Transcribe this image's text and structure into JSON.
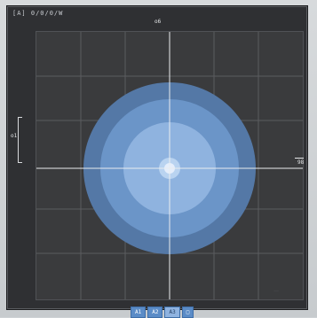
{
  "window": {
    "title": "[A] 0/0/0/W"
  },
  "axes": {
    "top_label": "o6",
    "right_label": "98",
    "left_scale_label": "o1"
  },
  "viewer": {
    "colors": {
      "background": "#3a3b3d",
      "grid": "#5b5d60",
      "crosshair": "#e9ecef",
      "ring_outer": "#5478a6",
      "ring_2": "#6b95c8",
      "ring_3": "#8fb3df",
      "ring_4": "#b9d3f0",
      "center": "#e5eefb"
    }
  },
  "bottom_bar": {
    "segments": [
      {
        "label": "A1",
        "active": false
      },
      {
        "label": "A2",
        "active": false
      },
      {
        "label": "A3",
        "active": true
      }
    ],
    "extra": "□"
  },
  "watermark": "—"
}
